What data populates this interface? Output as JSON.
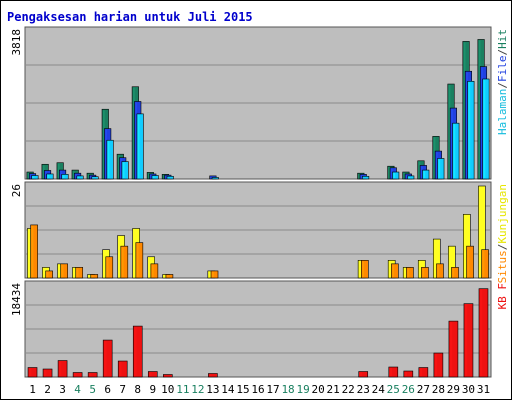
{
  "chart_data": [
    {
      "type": "bar",
      "title": "Pengaksesan harian untuk Juli 2015",
      "x": [
        "1",
        "2",
        "3",
        "4",
        "5",
        "6",
        "7",
        "8",
        "9",
        "10",
        "11",
        "12",
        "13",
        "14",
        "15",
        "16",
        "17",
        "18",
        "19",
        "20",
        "21",
        "22",
        "23",
        "24",
        "25",
        "26",
        "27",
        "28",
        "29",
        "30",
        "31"
      ],
      "weekend_days": [
        "4",
        "5",
        "11",
        "12",
        "18",
        "19",
        "25",
        "26"
      ],
      "ymax_label": "3818",
      "ylim": [
        0,
        3818
      ],
      "legend_parts": [
        "Halaman",
        "/",
        "File",
        "/",
        "Hit"
      ],
      "series": [
        {
          "name": "Hit",
          "color": "#1a8060",
          "values": [
            180,
            380,
            420,
            230,
            150,
            1800,
            640,
            2380,
            170,
            120,
            0,
            0,
            0,
            0,
            0,
            0,
            0,
            0,
            0,
            0,
            0,
            0,
            150,
            0,
            330,
            180,
            470,
            1100,
            2450,
            3550,
            3600
          ]
        },
        {
          "name": "File",
          "color": "#2040e0",
          "values": [
            140,
            220,
            230,
            150,
            100,
            1300,
            550,
            2000,
            130,
            100,
            0,
            0,
            80,
            0,
            0,
            0,
            0,
            0,
            0,
            0,
            0,
            0,
            120,
            0,
            290,
            130,
            350,
            720,
            1830,
            2780,
            2900
          ]
        },
        {
          "name": "Halaman",
          "color": "#11ccff",
          "values": [
            90,
            130,
            120,
            80,
            60,
            1000,
            450,
            1680,
            90,
            70,
            0,
            0,
            40,
            0,
            0,
            0,
            0,
            0,
            0,
            0,
            0,
            0,
            70,
            0,
            180,
            80,
            230,
            530,
            1440,
            2520,
            2580
          ]
        }
      ]
    },
    {
      "type": "bar",
      "x": [
        "1",
        "2",
        "3",
        "4",
        "5",
        "6",
        "7",
        "8",
        "9",
        "10",
        "11",
        "12",
        "13",
        "14",
        "15",
        "16",
        "17",
        "18",
        "19",
        "20",
        "21",
        "22",
        "23",
        "24",
        "25",
        "26",
        "27",
        "28",
        "29",
        "30",
        "31"
      ],
      "ymax_label": "26",
      "ylim": [
        0,
        26
      ],
      "legend_parts": [
        "Situs",
        "/",
        "Kunjungan"
      ],
      "legend_colors": [
        "#ff8800",
        "#444444",
        "#e6e600"
      ],
      "series": [
        {
          "name": "Kunjungan",
          "color": "#ffff20",
          "values": [
            14,
            3,
            4,
            3,
            1,
            8,
            12,
            14,
            6,
            1,
            0,
            0,
            2,
            0,
            0,
            0,
            0,
            0,
            0,
            0,
            0,
            0,
            5,
            0,
            5,
            3,
            5,
            11,
            9,
            18,
            26
          ]
        },
        {
          "name": "Situs",
          "color": "#ff8800",
          "values": [
            15,
            2,
            4,
            3,
            1,
            6,
            9,
            10,
            4,
            1,
            0,
            0,
            2,
            0,
            0,
            0,
            0,
            0,
            0,
            0,
            0,
            0,
            5,
            0,
            4,
            3,
            3,
            4,
            3,
            9,
            8
          ]
        }
      ]
    },
    {
      "type": "bar",
      "x": [
        "1",
        "2",
        "3",
        "4",
        "5",
        "6",
        "7",
        "8",
        "9",
        "10",
        "11",
        "12",
        "13",
        "14",
        "15",
        "16",
        "17",
        "18",
        "19",
        "20",
        "21",
        "22",
        "23",
        "24",
        "25",
        "26",
        "27",
        "28",
        "29",
        "30",
        "31"
      ],
      "ymax_label": "18434",
      "ylim": [
        0,
        18434
      ],
      "legend_parts": [
        "KB F"
      ],
      "series": [
        {
          "name": "KB F",
          "color": "#ee1111",
          "values": [
            1900,
            1600,
            3300,
            900,
            900,
            7400,
            3200,
            10200,
            1100,
            500,
            0,
            0,
            700,
            0,
            0,
            0,
            0,
            0,
            0,
            0,
            0,
            0,
            1100,
            0,
            2000,
            1200,
            1900,
            4800,
            11200,
            14700,
            17700
          ]
        }
      ]
    }
  ]
}
